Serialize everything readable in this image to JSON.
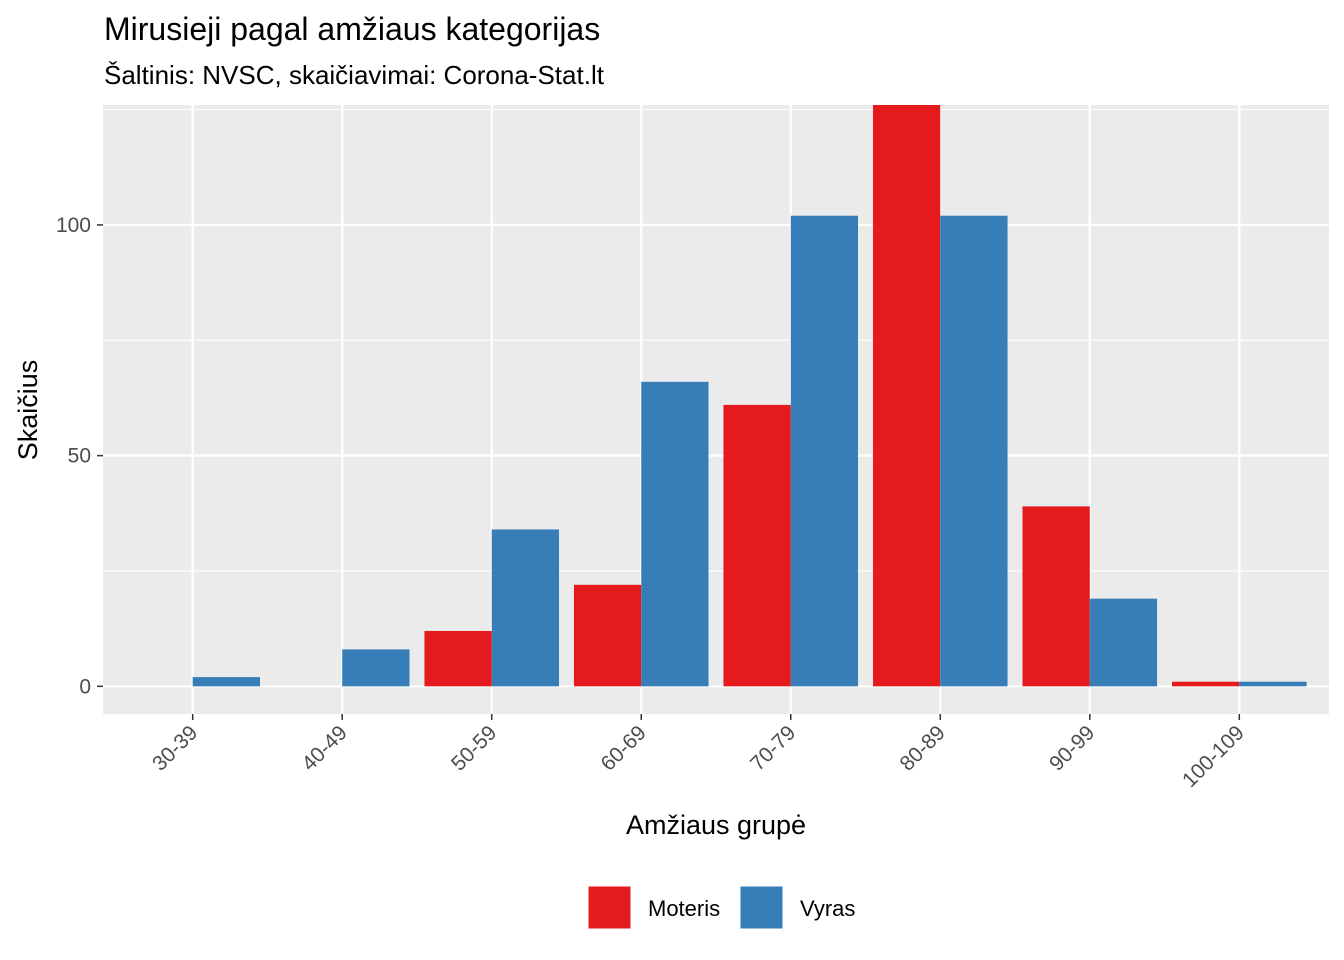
{
  "chart_data": {
    "type": "bar",
    "title": "Mirusieji pagal amžiaus kategorijas",
    "subtitle": "Šaltinis: NVSC, skaičiavimai: Corona-Stat.lt",
    "xlabel": "Amžiaus grupė",
    "ylabel": "Skaičius",
    "categories": [
      "30-39",
      "40-49",
      "50-59",
      "60-69",
      "70-79",
      "80-89",
      "90-99",
      "100-109"
    ],
    "series": [
      {
        "name": "Moteris",
        "color": "#e41a1c",
        "values": [
          0,
          0,
          12,
          22,
          61,
          126,
          39,
          1
        ]
      },
      {
        "name": "Vyras",
        "color": "#377eb8",
        "values": [
          2,
          8,
          34,
          66,
          102,
          102,
          19,
          1
        ]
      }
    ],
    "ylim": [
      -6,
      126
    ],
    "yticks": [
      0,
      50,
      100
    ],
    "grid": true,
    "legend_position": "bottom",
    "panel_background": "#ebebeb"
  }
}
